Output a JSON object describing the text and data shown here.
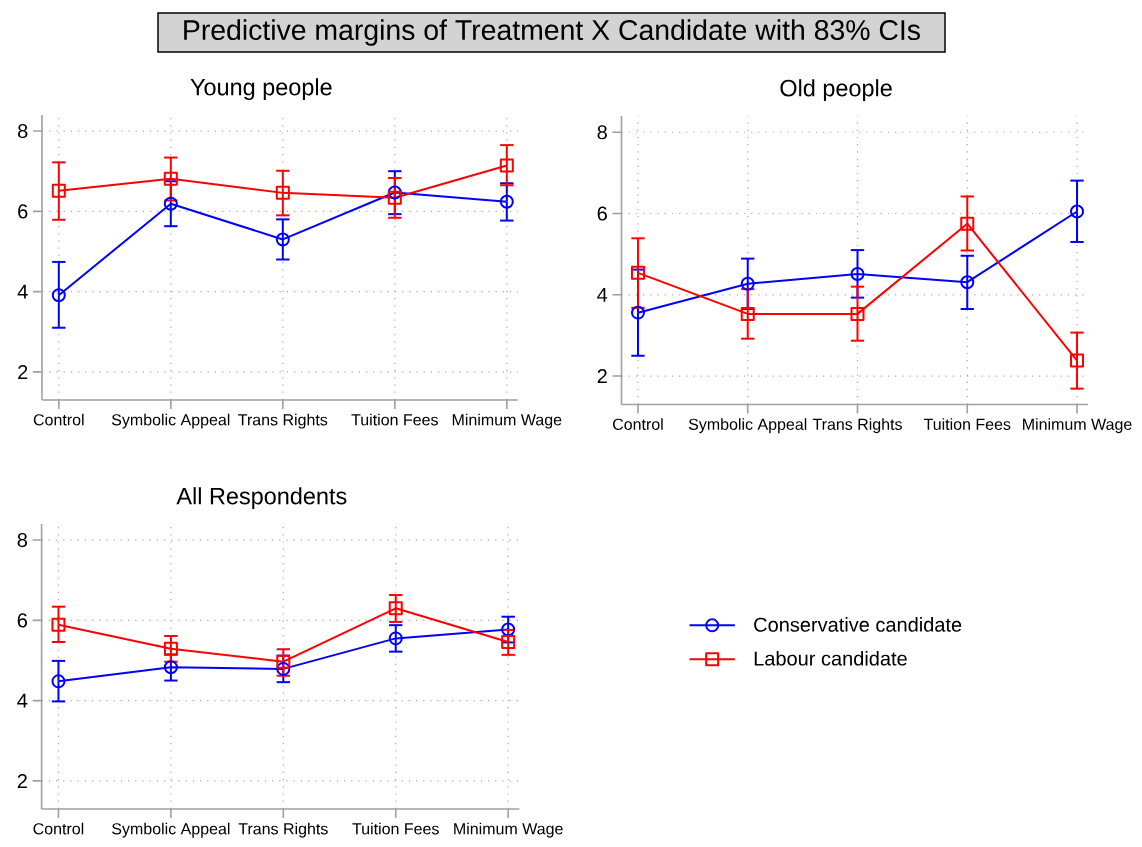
{
  "chart_data": [
    {
      "type": "other",
      "title": "Predictive margins of Treatment X Candidate with 83% CIs"
    },
    {
      "type": "line",
      "title": "Young people",
      "categories": [
        "Control",
        "Symbolic Appeal",
        "Trans Rights",
        "Tuition Fees",
        "Minimum Wage"
      ],
      "ylim": [
        1.3,
        8.4
      ],
      "yticks": [
        2,
        4,
        6,
        8
      ],
      "grid": true,
      "series": [
        {
          "color": "#0000ff",
          "marker": "circle",
          "values": [
            3.91,
            6.19,
            5.3,
            6.47,
            6.24
          ],
          "errors": [
            [
              3.1,
              4.74
            ],
            [
              5.63,
              6.75
            ],
            [
              4.8,
              5.8
            ],
            [
              5.93,
              7.0
            ],
            [
              5.77,
              6.7
            ]
          ]
        },
        {
          "color": "#ff0000",
          "marker": "square",
          "values": [
            6.51,
            6.81,
            6.46,
            6.34,
            7.14
          ],
          "errors": [
            [
              5.79,
              7.22
            ],
            [
              6.27,
              7.34
            ],
            [
              5.9,
              7.01
            ],
            [
              5.84,
              6.83
            ],
            [
              6.65,
              7.65
            ]
          ]
        }
      ]
    },
    {
      "type": "line",
      "title": "Old people",
      "categories": [
        "Control",
        "Symbolic Appeal",
        "Trans Rights",
        "Tuition Fees",
        "Minimum Wage"
      ],
      "ylim": [
        1.3,
        8.4
      ],
      "yticks": [
        2,
        4,
        6,
        8
      ],
      "grid": true,
      "series": [
        {
          "color": "#0000ff",
          "marker": "circle",
          "values": [
            3.56,
            4.27,
            4.51,
            4.31,
            6.05
          ],
          "errors": [
            [
              2.5,
              4.62
            ],
            [
              3.65,
              4.89
            ],
            [
              3.93,
              5.1
            ],
            [
              3.65,
              4.96
            ],
            [
              5.3,
              6.81
            ]
          ]
        },
        {
          "color": "#ff0000",
          "marker": "square",
          "values": [
            4.54,
            3.53,
            3.53,
            5.75,
            2.38
          ],
          "errors": [
            [
              3.68,
              5.39
            ],
            [
              2.92,
              4.14
            ],
            [
              2.87,
              4.2
            ],
            [
              5.09,
              6.42
            ],
            [
              1.69,
              3.07
            ]
          ]
        }
      ]
    },
    {
      "type": "line",
      "title": "All Respondents",
      "categories": [
        "Control",
        "Symbolic Appeal",
        "Trans Rights",
        "Tuition Fees",
        "Minimum Wage"
      ],
      "ylim": [
        1.3,
        8.4
      ],
      "yticks": [
        2,
        4,
        6,
        8
      ],
      "grid": true,
      "legend": "right",
      "series": [
        {
          "name": "Conservative candidate",
          "color": "#0000ff",
          "marker": "circle",
          "values": [
            4.48,
            4.83,
            4.79,
            5.55,
            5.77
          ],
          "errors": [
            [
              3.98,
              4.99
            ],
            [
              4.5,
              5.15
            ],
            [
              4.46,
              5.12
            ],
            [
              5.22,
              5.88
            ],
            [
              5.45,
              6.09
            ]
          ]
        },
        {
          "name": "Labour candidate",
          "color": "#ff0000",
          "marker": "square",
          "values": [
            5.89,
            5.29,
            4.97,
            6.3,
            5.46
          ],
          "errors": [
            [
              5.46,
              6.34
            ],
            [
              4.97,
              5.61
            ],
            [
              4.62,
              5.28
            ],
            [
              5.96,
              6.63
            ],
            [
              5.14,
              5.76
            ]
          ]
        }
      ]
    }
  ]
}
